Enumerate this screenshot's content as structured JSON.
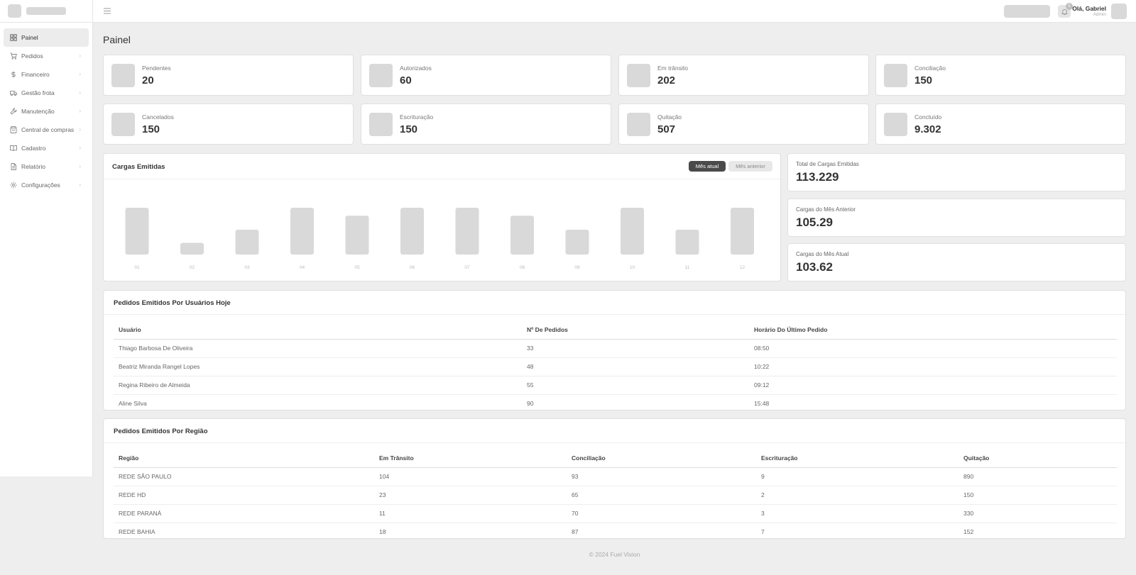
{
  "topbar": {
    "notifications_count": "5",
    "user_greeting": "Olá, Gabriel",
    "user_role": "Admin"
  },
  "sidebar": {
    "items": [
      {
        "label": "Painel",
        "icon": "grid-icon",
        "active": true
      },
      {
        "label": "Pedidos",
        "icon": "cart-icon"
      },
      {
        "label": "Financeiro",
        "icon": "dollar-icon"
      },
      {
        "label": "Gestão frota",
        "icon": "truck-icon"
      },
      {
        "label": "Manutenção",
        "icon": "wrench-icon"
      },
      {
        "label": "Central de compras",
        "icon": "bag-icon"
      },
      {
        "label": "Cadastro",
        "icon": "book-icon"
      },
      {
        "label": "Relatório",
        "icon": "file-icon"
      },
      {
        "label": "Configurações",
        "icon": "gear-icon"
      }
    ]
  },
  "page": {
    "title": "Painel"
  },
  "stats": [
    {
      "label": "Pendentes",
      "value": "20"
    },
    {
      "label": "Autorizados",
      "value": "60"
    },
    {
      "label": "Em trânsito",
      "value": "202"
    },
    {
      "label": "Conciliação",
      "value": "150"
    },
    {
      "label": "Cancelados",
      "value": "150"
    },
    {
      "label": "Escrituração",
      "value": "150"
    },
    {
      "label": "Quitação",
      "value": "507"
    },
    {
      "label": "Concluído",
      "value": "9.302"
    }
  ],
  "chart_panel": {
    "title": "Cargas Emitidas",
    "toggle_current": "Mês atual",
    "toggle_previous": "Mês anterior"
  },
  "chart_data": {
    "type": "bar",
    "title": "Cargas Emitidas",
    "categories": [
      "01",
      "02",
      "03",
      "04",
      "05",
      "06",
      "07",
      "08",
      "09",
      "10",
      "11",
      "12"
    ],
    "values": [
      100,
      25,
      53,
      100,
      83,
      100,
      100,
      83,
      53,
      100,
      53,
      100
    ],
    "ylim": [
      0,
      100
    ],
    "grid": false,
    "bar_color": "#d9d9d9"
  },
  "summary": [
    {
      "label": "Total de Cargas Emitidas",
      "value": "113.229"
    },
    {
      "label": "Cargas do Mês Anterior",
      "value": "105.29"
    },
    {
      "label": "Cargas do Mês Atual",
      "value": "103.62"
    }
  ],
  "users_table": {
    "title": "Pedidos Emitidos Por Usuários Hoje",
    "columns": [
      "Usuário",
      "Nº De Pedidos",
      "Horário Do Último Pedido"
    ],
    "rows": [
      [
        "Thiago Barbosa De Oliveira",
        "33",
        "08:50"
      ],
      [
        "Beatriz Miranda Rangel Lopes",
        "48",
        "10:22"
      ],
      [
        "Regina Ribeiro de Almeida",
        "55",
        "09:12"
      ],
      [
        "Aline Silva",
        "90",
        "15:48"
      ]
    ]
  },
  "region_table": {
    "title": "Pedidos Emitidos Por Região",
    "columns": [
      "Região",
      "Em Trânsito",
      "Conciliação",
      "Escrituração",
      "Quitação"
    ],
    "rows": [
      [
        "REDE SÃO PAULO",
        "104",
        "93",
        "9",
        "890"
      ],
      [
        "REDE HD",
        "23",
        "65",
        "2",
        "150"
      ],
      [
        "REDE PARANÁ",
        "11",
        "70",
        "3",
        "330"
      ],
      [
        "REDE BAHIA",
        "18",
        "87",
        "7",
        "152"
      ]
    ]
  },
  "footer": {
    "text": "© 2024 Fuel Vision"
  },
  "colors": {
    "accent_dark": "#4a4a4a",
    "placeholder": "#d9d9d9",
    "background": "#eeeeee"
  }
}
